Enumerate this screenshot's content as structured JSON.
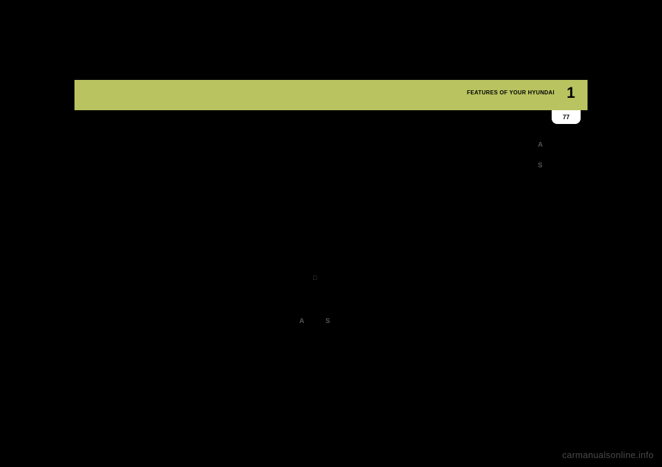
{
  "header": {
    "title": "FEATURES OF YOUR HYUNDAI",
    "chapter": "1",
    "page": "77"
  },
  "symbols": {
    "a1": "A",
    "s1": "S",
    "box": "□",
    "a2": "A",
    "s2": "S"
  },
  "watermark": "carmanualsonline.info",
  "colors": {
    "header_bg": "#b9c360",
    "page_bg": "#000000",
    "page_box_bg": "#ffffff",
    "watermark_color": "#4a4a4a"
  }
}
